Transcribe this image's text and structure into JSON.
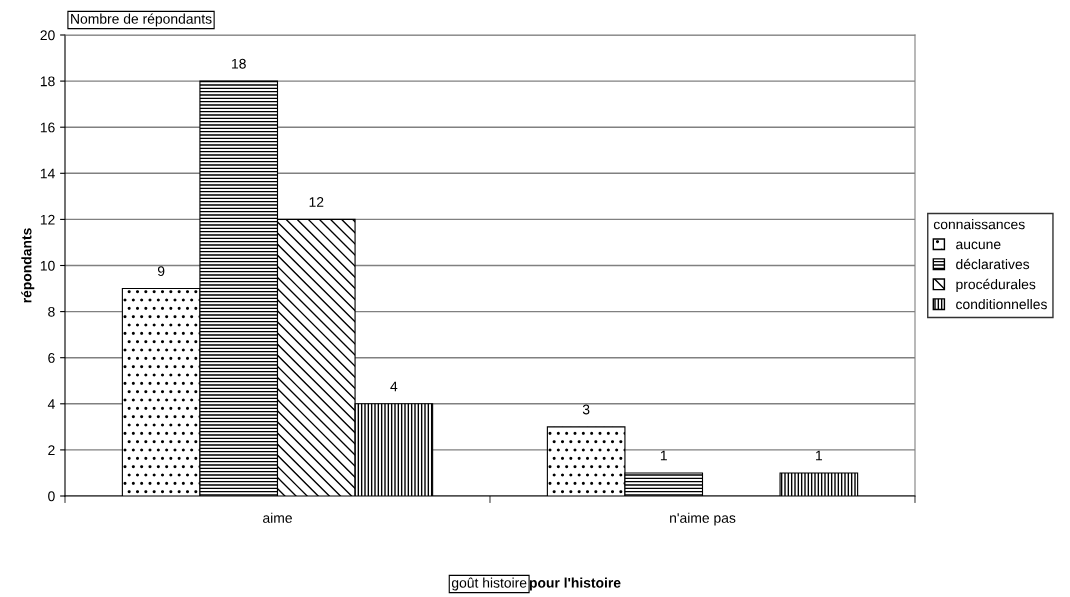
{
  "chart_data": {
    "type": "bar",
    "ylabel": "répondants",
    "xlabel": "pour l'histoire",
    "legend_title": "connaissances",
    "annotations": [
      "Nombre de répondants",
      "goût histoire"
    ],
    "categories": [
      "aime",
      "n'aime pas"
    ],
    "series": [
      {
        "name": "aucune",
        "color": "#000000",
        "values": [
          9,
          3
        ]
      },
      {
        "name": "déclaratives",
        "color": "#000000",
        "values": [
          18,
          1
        ]
      },
      {
        "name": "procédurales",
        "color": "#000000",
        "values": [
          12,
          null
        ]
      },
      {
        "name": "conditionnelles",
        "color": "#000000",
        "values": [
          4,
          1
        ]
      }
    ],
    "ylim": [
      0,
      20
    ],
    "yticks": [
      0,
      2,
      4,
      6,
      8,
      10,
      12,
      14,
      16,
      18,
      20
    ],
    "grid": "y",
    "legend": "right",
    "data_labels": true
  }
}
